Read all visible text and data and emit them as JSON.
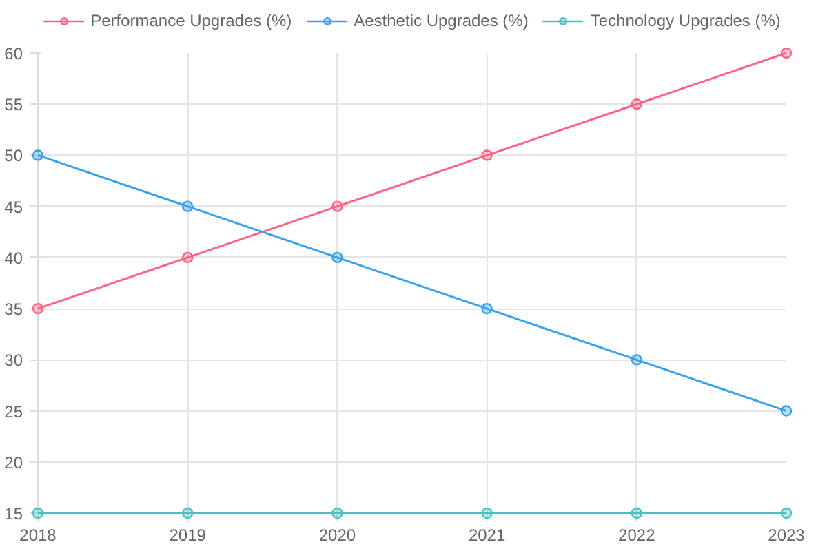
{
  "chart_data": {
    "type": "line",
    "categories": [
      "2018",
      "2019",
      "2020",
      "2021",
      "2022",
      "2023"
    ],
    "series": [
      {
        "name": "Performance Upgrades (%)",
        "color": "#ff6384",
        "values": [
          35,
          40,
          45,
          50,
          55,
          60
        ]
      },
      {
        "name": "Aesthetic Upgrades (%)",
        "color": "#36a2eb",
        "values": [
          50,
          45,
          40,
          35,
          30,
          25
        ]
      },
      {
        "name": "Technology Upgrades (%)",
        "color": "#4bc0c0",
        "values": [
          15,
          15,
          15,
          15,
          15,
          15
        ]
      }
    ],
    "ylim": [
      15,
      60
    ],
    "yticks": [
      15,
      20,
      25,
      30,
      35,
      40,
      45,
      50,
      55,
      60
    ],
    "grid": true,
    "legend": "top",
    "marker": "circle",
    "line_style": "solid"
  }
}
